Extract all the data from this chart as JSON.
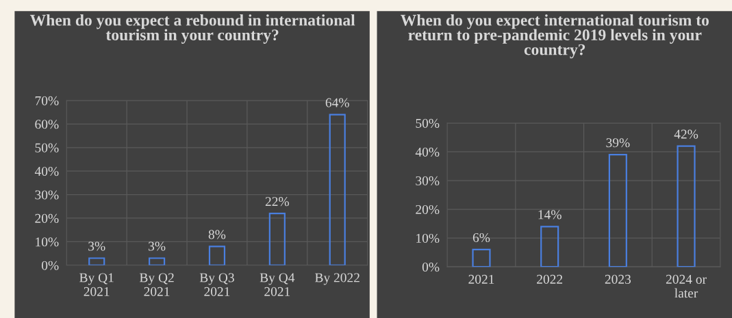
{
  "chart_data": [
    {
      "type": "bar",
      "title": "When do you expect a rebound in international tourism in your country?",
      "categories": [
        "By Q1 2021",
        "By Q2 2021",
        "By Q3 2021",
        "By Q4 2021",
        "By 2022"
      ],
      "values": [
        3,
        3,
        8,
        22,
        64
      ],
      "value_labels": [
        "3%",
        "3%",
        "8%",
        "22%",
        "64%"
      ],
      "color": "#4a7fe0",
      "ylim": [
        0,
        70
      ],
      "yticks": [
        {
          "value": 0,
          "label": "0%"
        },
        {
          "value": 10,
          "label": "10%"
        },
        {
          "value": 20,
          "label": "20%"
        },
        {
          "value": 30,
          "label": "30%"
        },
        {
          "value": 40,
          "label": "40%"
        },
        {
          "value": 50,
          "label": "50%"
        },
        {
          "value": 60,
          "label": "60%"
        },
        {
          "value": 70,
          "label": "70%"
        }
      ],
      "grid": true,
      "legend": false
    },
    {
      "type": "bar",
      "title": "When do you expect international tourism to return to pre-pandemic 2019 levels in your country?",
      "categories": [
        "2021",
        "2022",
        "2023",
        "2024 or later"
      ],
      "values": [
        6,
        14,
        39,
        42
      ],
      "value_labels": [
        "6%",
        "14%",
        "39%",
        "42%"
      ],
      "color": "#4a7fe0",
      "ylim": [
        0,
        50
      ],
      "yticks": [
        {
          "value": 0,
          "label": "0%"
        },
        {
          "value": 10,
          "label": "10%"
        },
        {
          "value": 20,
          "label": "20%"
        },
        {
          "value": 30,
          "label": "30%"
        },
        {
          "value": 40,
          "label": "40%"
        },
        {
          "value": 50,
          "label": "50%"
        }
      ],
      "grid": true,
      "legend": false
    }
  ]
}
